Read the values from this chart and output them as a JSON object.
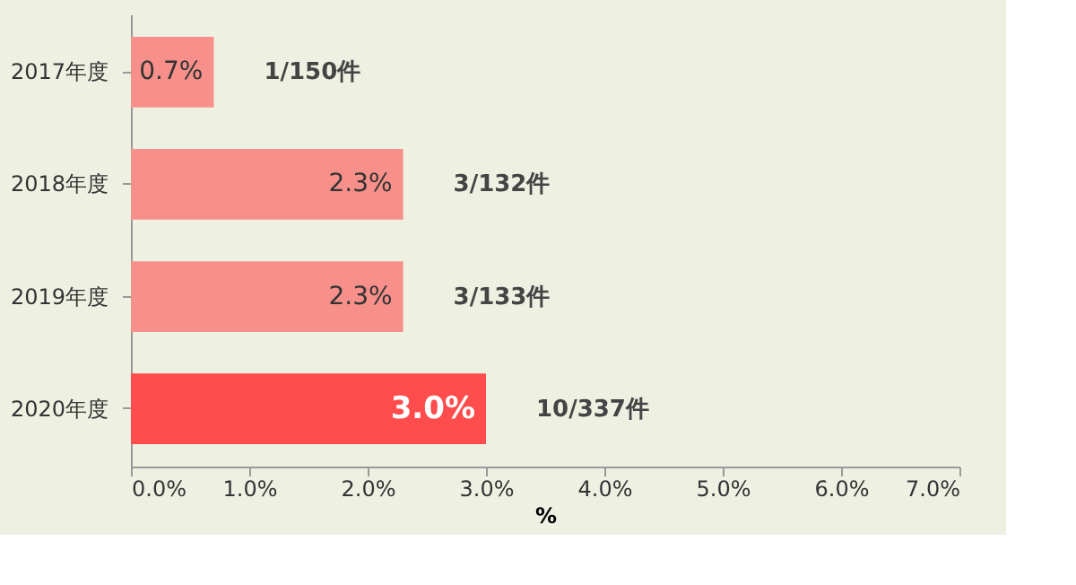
{
  "chart_data": {
    "type": "bar",
    "orientation": "horizontal",
    "categories": [
      "2017年度",
      "2018年度",
      "2019年度",
      "2020年度"
    ],
    "values": [
      0.7,
      2.3,
      2.3,
      3.0
    ],
    "colors": [
      "#f7908a",
      "#f7908a",
      "#f7908a",
      "#ff4d4d"
    ],
    "value_labels": [
      "0.7%",
      "2.3%",
      "2.3%",
      "3.0%"
    ],
    "xlabel": "%",
    "xlim": [
      0,
      7
    ],
    "xticks": [
      {
        "value": 0,
        "label": "0.0%"
      },
      {
        "value": 1,
        "label": "1.0%"
      },
      {
        "value": 2,
        "label": "2.0%"
      },
      {
        "value": 3,
        "label": "3.0%"
      },
      {
        "value": 4,
        "label": "4.0%"
      },
      {
        "value": 5,
        "label": "5.0%"
      },
      {
        "value": 6,
        "label": "6.0%"
      },
      {
        "value": 7,
        "label": "7.0%"
      }
    ],
    "annotations": [
      "1/150件",
      "3/132件",
      "3/133件",
      "10/337件"
    ]
  }
}
